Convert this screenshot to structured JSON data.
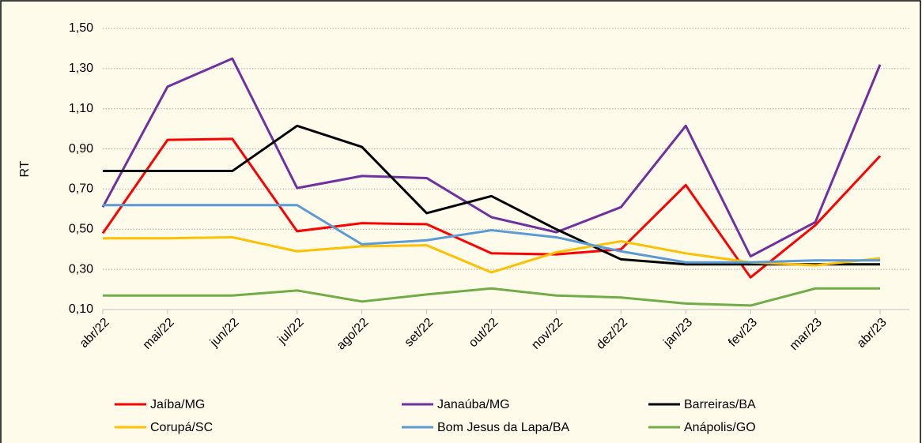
{
  "chart_data": {
    "type": "line",
    "y_label": "RT",
    "categories": [
      "abr/22",
      "mai/22",
      "jun/22",
      "jul/22",
      "ago/22",
      "set/22",
      "out/22",
      "nov/22",
      "dez/22",
      "jan/23",
      "fev/23",
      "mar/23",
      "abr/23"
    ],
    "ylim": [
      0.1,
      1.5
    ],
    "yticks": [
      {
        "value": 0.1,
        "label": "0,10"
      },
      {
        "value": 0.3,
        "label": "0,30"
      },
      {
        "value": 0.5,
        "label": "0,50"
      },
      {
        "value": 0.7,
        "label": "0,70"
      },
      {
        "value": 0.9,
        "label": "0,90"
      },
      {
        "value": 1.1,
        "label": "1,10"
      },
      {
        "value": 1.3,
        "label": "1,30"
      },
      {
        "value": 1.5,
        "label": "1,50"
      }
    ],
    "grid": true,
    "series": [
      {
        "name": "Jaíba/MG",
        "color": "#ff0000",
        "values": [
          0.48,
          0.945,
          0.95,
          0.49,
          0.53,
          0.525,
          0.38,
          0.375,
          0.4,
          0.72,
          0.26,
          0.52,
          0.865
        ]
      },
      {
        "name": "Janaúba/MG",
        "color": "#7030a0",
        "values": [
          0.61,
          1.21,
          1.35,
          0.705,
          0.765,
          0.755,
          0.56,
          0.485,
          0.61,
          1.015,
          0.365,
          0.535,
          1.32
        ]
      },
      {
        "name": "Barreiras/BA",
        "color": "#000000",
        "values": [
          0.79,
          0.79,
          0.79,
          1.015,
          0.91,
          0.58,
          0.665,
          0.5,
          0.35,
          0.325,
          0.325,
          0.325,
          0.325
        ]
      },
      {
        "name": "Corupá/SC",
        "color": "#ffc000",
        "values": [
          0.455,
          0.455,
          0.46,
          0.39,
          0.415,
          0.42,
          0.285,
          0.385,
          0.44,
          0.38,
          0.335,
          0.32,
          0.355
        ]
      },
      {
        "name": "Bom Jesus da Lapa/BA",
        "color": "#5b9bd5",
        "values": [
          0.62,
          0.62,
          0.62,
          0.62,
          0.425,
          0.445,
          0.495,
          0.46,
          0.39,
          0.335,
          0.335,
          0.345,
          0.345
        ]
      },
      {
        "name": "Anápolis/GO",
        "color": "#70ad47",
        "values": [
          0.17,
          0.17,
          0.17,
          0.195,
          0.14,
          0.175,
          0.205,
          0.17,
          0.16,
          0.13,
          0.12,
          0.205,
          0.205
        ]
      }
    ]
  }
}
